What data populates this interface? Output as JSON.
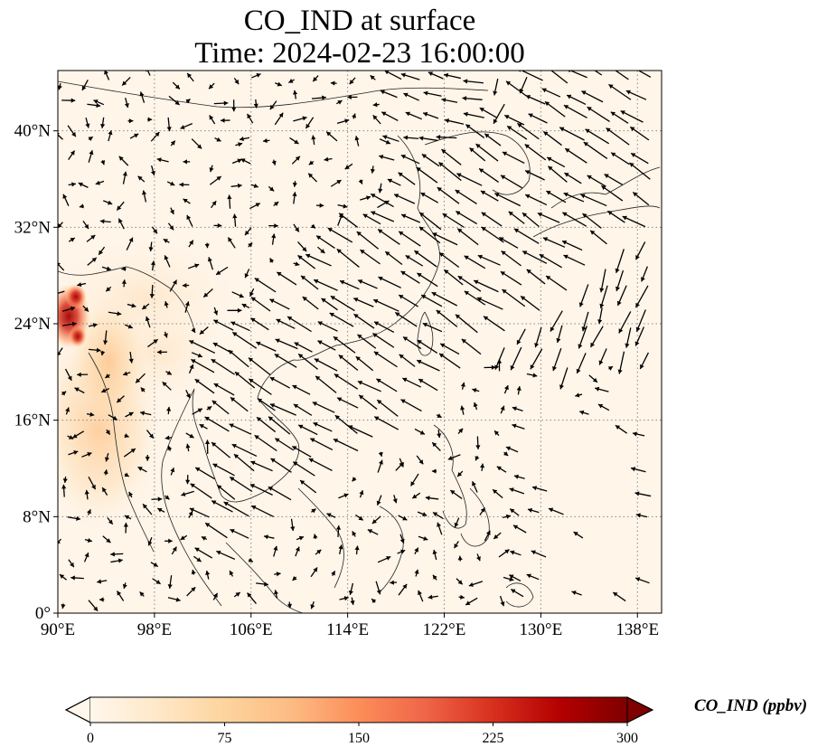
{
  "title": {
    "line1": "CO_IND at surface",
    "line2": "Time: 2024-02-23 16:00:00"
  },
  "map": {
    "variable": "CO_IND",
    "level": "surface",
    "lon_range": [
      90,
      140
    ],
    "lat_range": [
      0,
      45
    ],
    "lon_ticks": [
      {
        "value": 90,
        "label": "90°E"
      },
      {
        "value": 98,
        "label": "98°E"
      },
      {
        "value": 106,
        "label": "106°E"
      },
      {
        "value": 114,
        "label": "114°E"
      },
      {
        "value": 122,
        "label": "122°E"
      },
      {
        "value": 130,
        "label": "130°E"
      },
      {
        "value": 138,
        "label": "138°E"
      }
    ],
    "lat_ticks": [
      {
        "value": 0,
        "label": "0°"
      },
      {
        "value": 8,
        "label": "8°N"
      },
      {
        "value": 16,
        "label": "16°N"
      },
      {
        "value": 24,
        "label": "24°N"
      },
      {
        "value": 32,
        "label": "32°N"
      },
      {
        "value": 40,
        "label": "40°N"
      }
    ],
    "gridlines": "dotted",
    "overlay": "wind vectors",
    "colors": {
      "land_lines": "#222222",
      "arrows": "#000000",
      "grid": "#888888"
    }
  },
  "colorbar": {
    "label": "CO_IND (ppbv)",
    "min": 0,
    "max": 300,
    "ticks": [
      {
        "value": 0,
        "label": "0"
      },
      {
        "value": 75,
        "label": "75"
      },
      {
        "value": 150,
        "label": "150"
      },
      {
        "value": 225,
        "label": "225"
      },
      {
        "value": 300,
        "label": "300"
      }
    ],
    "colormap": "OrRd",
    "color_stops": [
      "#fff7ec",
      "#fee8c8",
      "#fdd49e",
      "#fdbb84",
      "#fc8d59",
      "#ef6548",
      "#d7301f",
      "#b30000",
      "#7f0000"
    ],
    "extend": "both"
  }
}
